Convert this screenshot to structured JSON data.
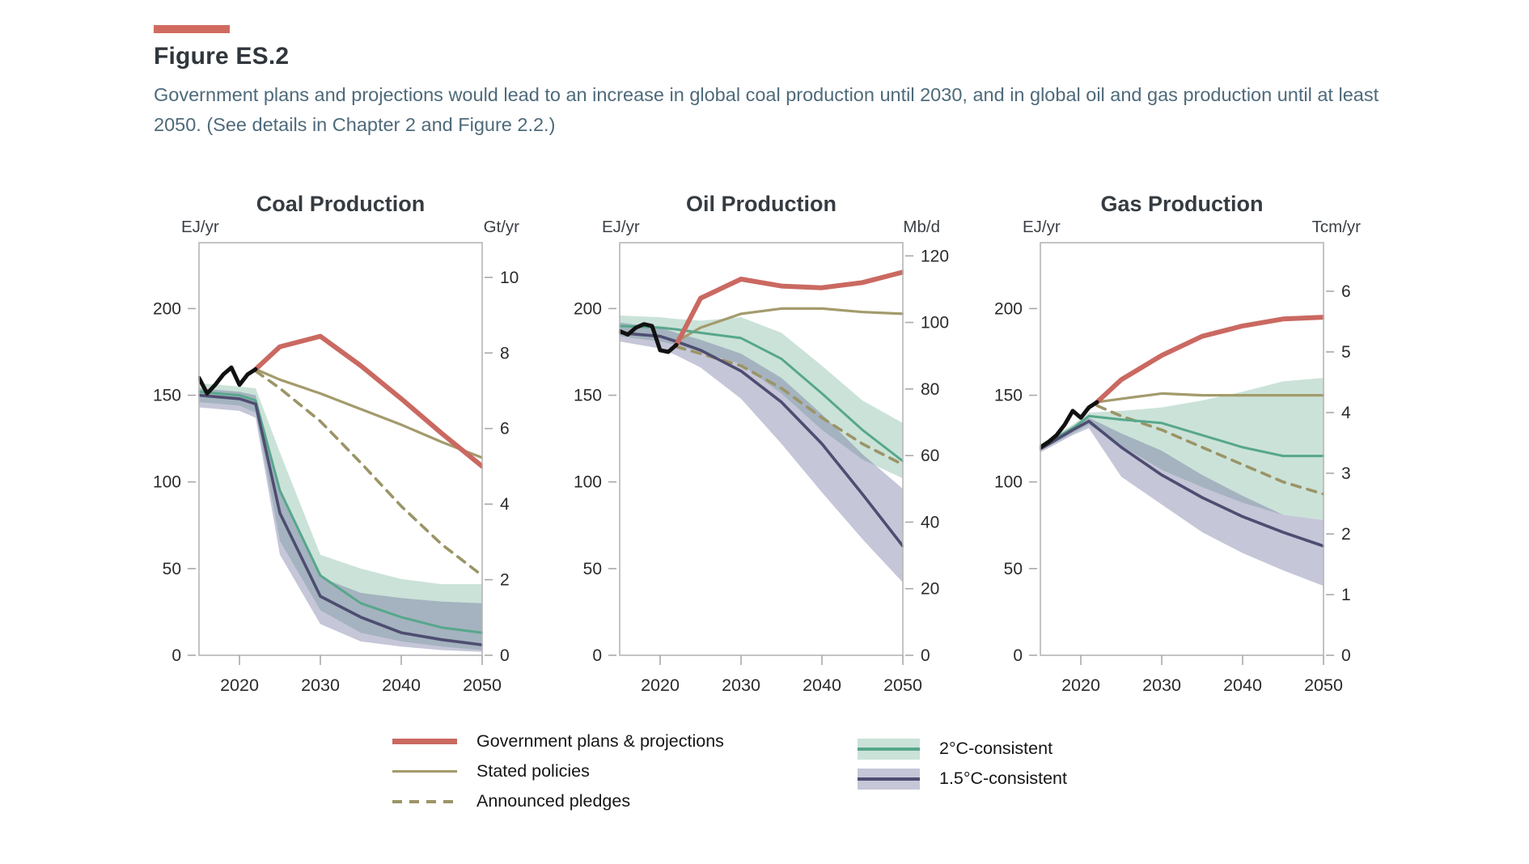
{
  "header": {
    "figure_label": "Figure ES.2",
    "description": "Government plans and projections would lead to an increase in global coal production until 2030, and in global oil and gas production until at least 2050. (See details in Chapter 2 and Figure 2.2.)"
  },
  "colors": {
    "accent": "#d16b60",
    "government": "#ca6961",
    "stated": "#a39b6c",
    "pledges": "#9b9467",
    "c2_line": "#57a78c",
    "c2_band": "rgba(97,167,138,0.33)",
    "c15_line": "#4e4d71",
    "c15_band": "rgba(95,96,148,0.36)",
    "historical": "#111111",
    "frame": "#b6b6b6",
    "tick": "#a8a8a8"
  },
  "legend": {
    "items": [
      {
        "id": "government-plans",
        "label": "Government plans & projections"
      },
      {
        "id": "stated-policies",
        "label": "Stated policies"
      },
      {
        "id": "announced-pledges",
        "label": "Announced pledges"
      },
      {
        "id": "2c-consistent",
        "label": "2°C-consistent"
      },
      {
        "id": "15c-consistent",
        "label": "1.5°C-consistent"
      }
    ]
  },
  "chart_data": [
    {
      "type": "line",
      "id": "coal",
      "title": "Coal Production",
      "left_unit": "EJ/yr",
      "right_unit": "Gt/yr",
      "left_ticks": [
        0,
        50,
        100,
        150,
        200
      ],
      "right_ticks": [
        0,
        2,
        4,
        6,
        8,
        10
      ],
      "ej_per_right_unit": 21.8,
      "xticks": [
        2020,
        2030,
        2040,
        2050
      ],
      "xlim": [
        2015,
        2050
      ],
      "ylim": [
        0,
        238
      ],
      "bands": [
        {
          "name": "2C-range",
          "color": "c2_band",
          "years": [
            2015,
            2020,
            2022,
            2025,
            2030,
            2035,
            2040,
            2045,
            2050
          ],
          "upper": [
            157,
            155,
            154,
            117,
            58,
            50,
            44,
            41,
            41
          ],
          "lower": [
            146,
            144,
            140,
            66,
            26,
            13,
            8,
            5,
            3
          ]
        },
        {
          "name": "1.5C-range",
          "color": "c15_band",
          "years": [
            2015,
            2020,
            2022,
            2025,
            2030,
            2035,
            2040,
            2045,
            2050
          ],
          "upper": [
            154,
            152,
            150,
            95,
            45,
            36,
            33,
            31,
            30
          ],
          "lower": [
            143,
            141,
            137,
            58,
            18,
            8,
            5,
            3,
            2
          ]
        }
      ],
      "series": [
        {
          "name": "stated-policies",
          "color": "stated",
          "width": 3.2,
          "years": [
            2022,
            2025,
            2030,
            2035,
            2040,
            2045,
            2050
          ],
          "values": [
            165,
            159,
            151,
            142,
            133,
            123,
            114
          ]
        },
        {
          "name": "announced-pledges",
          "color": "pledges",
          "width": 3.6,
          "dash": "11 9",
          "years": [
            2022,
            2025,
            2030,
            2035,
            2040,
            2045,
            2050
          ],
          "values": [
            164,
            154,
            135,
            111,
            86,
            64,
            46
          ]
        },
        {
          "name": "2C-consistent",
          "color": "c2_line",
          "width": 3,
          "years": [
            2015,
            2020,
            2022,
            2025,
            2030,
            2035,
            2040,
            2045,
            2050
          ],
          "values": [
            152,
            150,
            147,
            95,
            46,
            30,
            22,
            16,
            13
          ]
        },
        {
          "name": "1.5C-consistent",
          "color": "c15_line",
          "width": 3.6,
          "years": [
            2015,
            2020,
            2022,
            2025,
            2030,
            2035,
            2040,
            2045,
            2050
          ],
          "values": [
            150,
            148,
            145,
            82,
            34,
            22,
            13,
            9,
            6
          ]
        },
        {
          "name": "government-plans",
          "color": "government",
          "width": 6,
          "years": [
            2022,
            2025,
            2030,
            2035,
            2040,
            2045,
            2050
          ],
          "values": [
            165,
            178,
            184,
            167,
            148,
            128,
            109
          ]
        },
        {
          "name": "historical",
          "color": "historical",
          "width": 5,
          "years": [
            2015,
            2016,
            2017,
            2018,
            2019,
            2020,
            2021,
            2022
          ],
          "values": [
            160,
            151,
            156,
            162,
            166,
            156,
            162,
            165
          ]
        }
      ]
    },
    {
      "type": "line",
      "id": "oil",
      "title": "Oil Production",
      "left_unit": "EJ/yr",
      "right_unit": "Mb/d",
      "left_ticks": [
        0,
        50,
        100,
        150,
        200
      ],
      "right_ticks": [
        0,
        20,
        40,
        60,
        80,
        100,
        120
      ],
      "ej_per_right_unit": 1.92,
      "xticks": [
        2020,
        2030,
        2040,
        2050
      ],
      "xlim": [
        2015,
        2050
      ],
      "ylim": [
        0,
        238
      ],
      "bands": [
        {
          "name": "2C-range",
          "color": "c2_band",
          "years": [
            2015,
            2020,
            2022,
            2025,
            2030,
            2035,
            2040,
            2045,
            2050
          ],
          "upper": [
            196,
            195,
            194,
            193,
            195,
            186,
            167,
            147,
            134
          ],
          "lower": [
            184,
            181,
            179,
            175,
            168,
            151,
            130,
            113,
            102
          ]
        },
        {
          "name": "1.5C-range",
          "color": "c15_band",
          "years": [
            2015,
            2020,
            2022,
            2025,
            2030,
            2035,
            2040,
            2045,
            2050
          ],
          "upper": [
            192,
            189,
            186,
            182,
            174,
            160,
            139,
            116,
            96
          ],
          "lower": [
            181,
            177,
            173,
            166,
            148,
            122,
            94,
            67,
            42
          ]
        }
      ],
      "series": [
        {
          "name": "stated-policies",
          "color": "stated",
          "width": 3.2,
          "years": [
            2022,
            2025,
            2030,
            2035,
            2040,
            2045,
            2050
          ],
          "values": [
            181,
            189,
            197,
            200,
            200,
            198,
            197
          ]
        },
        {
          "name": "announced-pledges",
          "color": "pledges",
          "width": 3.6,
          "dash": "11 9",
          "years": [
            2022,
            2025,
            2030,
            2035,
            2040,
            2045,
            2050
          ],
          "values": [
            178,
            174,
            167,
            154,
            137,
            122,
            110
          ]
        },
        {
          "name": "2C-consistent",
          "color": "c2_line",
          "width": 3,
          "years": [
            2015,
            2020,
            2022,
            2025,
            2030,
            2035,
            2040,
            2045,
            2050
          ],
          "values": [
            190,
            189,
            188,
            186,
            183,
            171,
            151,
            130,
            112
          ]
        },
        {
          "name": "1.5C-consistent",
          "color": "c15_line",
          "width": 3.6,
          "years": [
            2015,
            2020,
            2022,
            2025,
            2030,
            2035,
            2040,
            2045,
            2050
          ],
          "values": [
            186,
            184,
            181,
            176,
            164,
            146,
            122,
            93,
            63
          ]
        },
        {
          "name": "government-plans",
          "color": "government",
          "width": 6,
          "years": [
            2022,
            2025,
            2030,
            2035,
            2040,
            2045,
            2050
          ],
          "values": [
            179,
            206,
            217,
            213,
            212,
            215,
            221
          ]
        },
        {
          "name": "historical",
          "color": "historical",
          "width": 5,
          "years": [
            2015,
            2016,
            2017,
            2018,
            2019,
            2020,
            2021,
            2022
          ],
          "values": [
            187,
            185,
            189,
            191,
            190,
            176,
            175,
            179
          ]
        }
      ]
    },
    {
      "type": "line",
      "id": "gas",
      "title": "Gas Production",
      "left_unit": "EJ/yr",
      "right_unit": "Tcm/yr",
      "left_ticks": [
        0,
        50,
        100,
        150,
        200
      ],
      "right_ticks": [
        0,
        1,
        2,
        3,
        4,
        5,
        6
      ],
      "ej_per_right_unit": 35.0,
      "xticks": [
        2020,
        2030,
        2040,
        2050
      ],
      "xlim": [
        2015,
        2050
      ],
      "ylim": [
        0,
        238
      ],
      "bands": [
        {
          "name": "2C-range",
          "color": "c2_band",
          "years": [
            2015,
            2019,
            2021,
            2025,
            2030,
            2035,
            2040,
            2045,
            2050
          ],
          "upper": [
            122,
            133,
            140,
            141,
            143,
            147,
            152,
            158,
            160
          ],
          "lower": [
            118,
            128,
            133,
            121,
            107,
            97,
            88,
            81,
            78
          ]
        },
        {
          "name": "1.5C-range",
          "color": "c15_band",
          "years": [
            2015,
            2019,
            2021,
            2025,
            2030,
            2035,
            2040,
            2045,
            2050
          ],
          "upper": [
            121,
            132,
            137,
            128,
            118,
            104,
            92,
            81,
            78
          ],
          "lower": [
            117,
            127,
            131,
            103,
            87,
            71,
            59,
            49,
            40
          ]
        }
      ],
      "series": [
        {
          "name": "stated-policies",
          "color": "stated",
          "width": 3.2,
          "years": [
            2022,
            2025,
            2030,
            2035,
            2040,
            2045,
            2050
          ],
          "values": [
            146,
            148,
            151,
            150,
            150,
            150,
            150
          ]
        },
        {
          "name": "announced-pledges",
          "color": "pledges",
          "width": 3.6,
          "dash": "11 9",
          "years": [
            2022,
            2025,
            2030,
            2035,
            2040,
            2045,
            2050
          ],
          "values": [
            144,
            138,
            130,
            120,
            110,
            100,
            93
          ]
        },
        {
          "name": "2C-consistent",
          "color": "c2_line",
          "width": 3,
          "years": [
            2015,
            2019,
            2021,
            2025,
            2030,
            2035,
            2040,
            2045,
            2050
          ],
          "values": [
            120,
            131,
            138,
            136,
            134,
            127,
            120,
            115,
            115
          ]
        },
        {
          "name": "1.5C-consistent",
          "color": "c15_line",
          "width": 3.6,
          "years": [
            2015,
            2019,
            2021,
            2025,
            2030,
            2035,
            2040,
            2045,
            2050
          ],
          "values": [
            119,
            130,
            135,
            120,
            104,
            91,
            80,
            71,
            63
          ]
        },
        {
          "name": "government-plans",
          "color": "government",
          "width": 6,
          "years": [
            2022,
            2025,
            2030,
            2035,
            2040,
            2045,
            2050
          ],
          "values": [
            146,
            159,
            173,
            184,
            190,
            194,
            195
          ]
        },
        {
          "name": "historical",
          "color": "historical",
          "width": 5,
          "years": [
            2015,
            2016,
            2017,
            2018,
            2019,
            2020,
            2021,
            2022
          ],
          "values": [
            120,
            123,
            127,
            133,
            141,
            137,
            143,
            146
          ]
        }
      ]
    }
  ]
}
